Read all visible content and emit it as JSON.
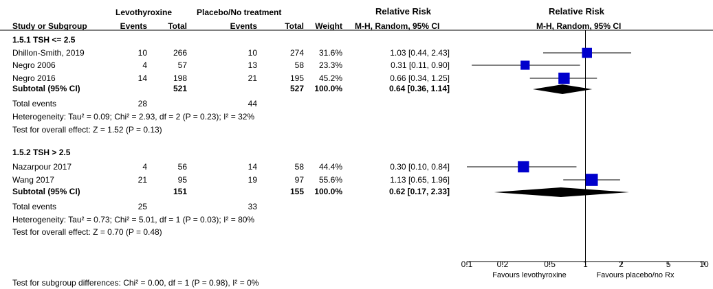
{
  "header": {
    "group1_label": "Levothyroxine",
    "group2_label": "Placebo/No treatment",
    "rr_label": "Relative Risk",
    "rr_plot_label": "Relative Risk",
    "col_study": "Study or Subgroup",
    "col_events1": "Events",
    "col_total1": "Total",
    "col_events2": "Events",
    "col_total2": "Total",
    "col_weight": "Weight",
    "col_ci": "M-H, Random, 95% CI",
    "col_ci_plot": "M-H, Random, 95% CI"
  },
  "subgroups": [
    {
      "title": "1.5.1 TSH <= 2.5",
      "studies": [
        {
          "name": "Dhillon-Smith, 2019",
          "e1": "10",
          "t1": "266",
          "e2": "10",
          "t2": "274",
          "weight": "31.6%",
          "ci": "1.03 [0.44, 2.43]"
        },
        {
          "name": "Negro 2006",
          "e1": "4",
          "t1": "57",
          "e2": "13",
          "t2": "58",
          "weight": "23.3%",
          "ci": "0.31 [0.11, 0.90]"
        },
        {
          "name": "Negro 2016",
          "e1": "14",
          "t1": "198",
          "e2": "21",
          "t2": "195",
          "weight": "45.2%",
          "ci": "0.66 [0.34, 1.25]"
        }
      ],
      "subtotal": {
        "label": "Subtotal (95% CI)",
        "t1": "521",
        "t2": "527",
        "weight": "100.0%",
        "ci": "0.64 [0.36, 1.14]"
      },
      "total_events": {
        "label": "Total events",
        "e1": "28",
        "e2": "44"
      },
      "heterogeneity": "Heterogeneity: Tau² = 0.09; Chi² = 2.93, df = 2 (P = 0.23); I² = 32%",
      "overall_effect": "Test for overall effect: Z = 1.52 (P = 0.13)"
    },
    {
      "title": "1.5.2 TSH > 2.5",
      "studies": [
        {
          "name": "Nazarpour 2017",
          "e1": "4",
          "t1": "56",
          "e2": "14",
          "t2": "58",
          "weight": "44.4%",
          "ci": "0.30 [0.10, 0.84]"
        },
        {
          "name": "Wang 2017",
          "e1": "21",
          "t1": "95",
          "e2": "19",
          "t2": "97",
          "weight": "55.6%",
          "ci": "1.13 [0.65, 1.96]"
        }
      ],
      "subtotal": {
        "label": "Subtotal (95% CI)",
        "t1": "151",
        "t2": "155",
        "weight": "100.0%",
        "ci": "0.62 [0.17, 2.33]"
      },
      "total_events": {
        "label": "Total events",
        "e1": "25",
        "e2": "33"
      },
      "heterogeneity": "Heterogeneity: Tau² = 0.73; Chi² = 5.01, df = 1 (P = 0.03); I² = 80%",
      "overall_effect": "Test for overall effect: Z = 0.70 (P = 0.48)"
    }
  ],
  "subgroup_differences": "Test for subgroup differences: Chi² = 0.00, df = 1 (P = 0.98), I² = 0%",
  "axis": {
    "ticks": [
      0.1,
      0.2,
      0.5,
      1,
      2,
      5,
      10
    ],
    "tick_labels": [
      "0.1",
      "0.2",
      "0.5",
      "1",
      "2",
      "5",
      "10"
    ],
    "favours_left": "Favours levothyroxine",
    "favours_right": "Favours placebo/no Rx"
  },
  "colors": {
    "marker": "#0000cc",
    "diamond": "#000000",
    "line": "#000000"
  },
  "chart_data": {
    "type": "forest",
    "scale": "log",
    "xlim": [
      0.1,
      10
    ],
    "reference": 1,
    "studies": [
      {
        "name": "Dhillon-Smith, 2019",
        "est": 1.03,
        "lo": 0.44,
        "hi": 2.43,
        "weight": 31.6
      },
      {
        "name": "Negro 2006",
        "est": 0.31,
        "lo": 0.11,
        "hi": 0.9,
        "weight": 23.3
      },
      {
        "name": "Negro 2016",
        "est": 0.66,
        "lo": 0.34,
        "hi": 1.25,
        "weight": 45.2
      },
      {
        "name": "Nazarpour 2017",
        "est": 0.3,
        "lo": 0.1,
        "hi": 0.84,
        "weight": 44.4
      },
      {
        "name": "Wang 2017",
        "est": 1.13,
        "lo": 0.65,
        "hi": 1.96,
        "weight": 55.6
      }
    ],
    "subtotals": [
      {
        "name": "1.5.1 TSH <= 2.5",
        "est": 0.64,
        "lo": 0.36,
        "hi": 1.14
      },
      {
        "name": "1.5.2 TSH > 2.5",
        "est": 0.62,
        "lo": 0.17,
        "hi": 2.33
      }
    ]
  }
}
